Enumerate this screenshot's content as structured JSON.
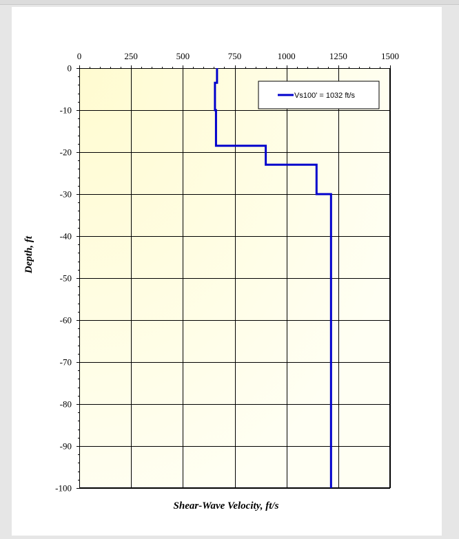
{
  "chart_data": {
    "type": "line",
    "title": "",
    "xlabel": "Shear-Wave Velocity, ft/s",
    "ylabel": "Depth, ft",
    "xlim": [
      0,
      1500
    ],
    "ylim": [
      -100,
      0
    ],
    "x_ticks": [
      0,
      250,
      500,
      750,
      1000,
      1250,
      1500
    ],
    "y_ticks": [
      0,
      -10,
      -20,
      -30,
      -40,
      -50,
      -60,
      -70,
      -80,
      -90,
      -100
    ],
    "x_axis_position": "top",
    "grid": true,
    "legend": {
      "position": "top-right",
      "entries": [
        "Vs100'  =  1032 ft/s"
      ]
    },
    "series": [
      {
        "name": "Vs100'  =  1032 ft/s",
        "color": "#0000cc",
        "x": [
          665,
          665,
          655,
          655,
          660,
          660,
          900,
          900,
          1145,
          1145,
          1215,
          1215
        ],
        "y": [
          0,
          -3.5,
          -3.5,
          -10,
          -10,
          -18.5,
          -18.5,
          -23,
          -23,
          -30,
          -30,
          -100
        ]
      }
    ]
  },
  "colors": {
    "plot_bg_light": "#fffde0",
    "plot_bg": "#fffff0",
    "series_line": "#0000cc",
    "grid": "#000000"
  }
}
